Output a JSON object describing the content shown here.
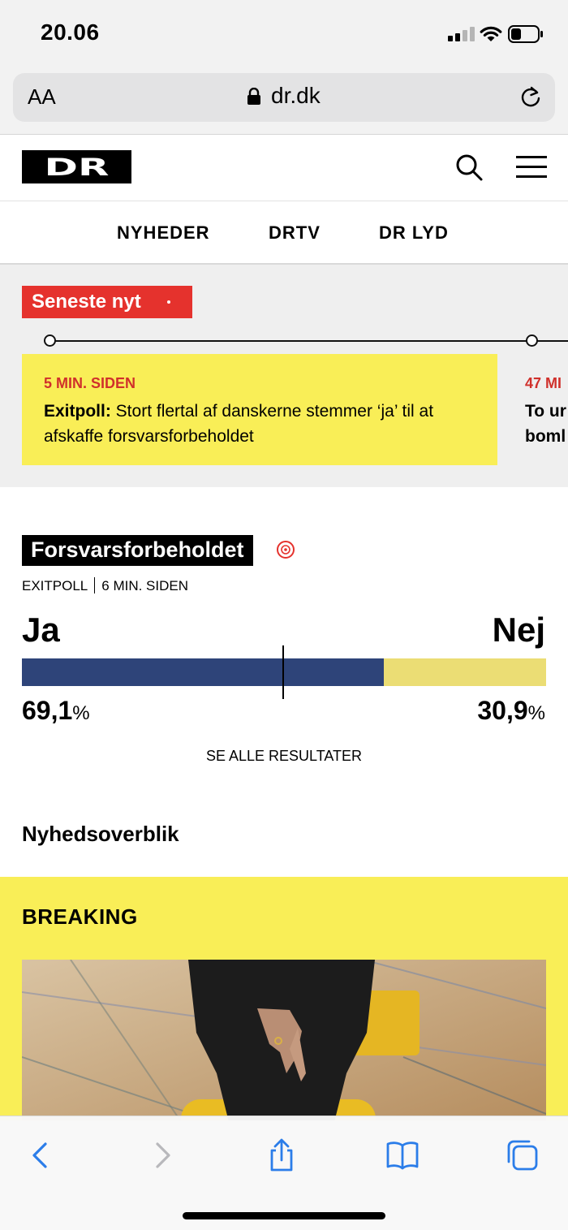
{
  "status_bar": {
    "time": "20.06"
  },
  "browser": {
    "text_size_label": "AA",
    "url": "dr.dk"
  },
  "site": {
    "logo_text": "DR",
    "nav": [
      "NYHEDER",
      "DRTV",
      "DR LYD"
    ]
  },
  "latest_news": {
    "badge": "Seneste nyt",
    "items": [
      {
        "time": "5 MIN. SIDEN",
        "title_bold": "Exitpoll:",
        "title": " Stort flertal af danskerne stemmer ‘ja’ til at afskaffe forsvarsforbeholdet"
      },
      {
        "time": "47 MI",
        "title_line1": "To ur",
        "title_line2": "boml"
      }
    ]
  },
  "poll": {
    "topic": "Forsvarsforbeholdet",
    "meta_type": "EXITPOLL",
    "meta_time": "6 MIN. SIDEN",
    "yes_label": "Ja",
    "no_label": "Nej",
    "yes_value": "69,1",
    "no_value": "30,9",
    "unit": "%",
    "yes_fraction": 0.691,
    "colors": {
      "yes": "#2e4479",
      "no": "#ebdd74"
    },
    "see_all": "SE ALLE RESULTATER"
  },
  "overview": {
    "title": "Nyhedsoverblik"
  },
  "breaking": {
    "title": "BREAKING"
  },
  "colors": {
    "accent_red": "#e5322d",
    "breaking_yellow": "#f9ee57"
  }
}
